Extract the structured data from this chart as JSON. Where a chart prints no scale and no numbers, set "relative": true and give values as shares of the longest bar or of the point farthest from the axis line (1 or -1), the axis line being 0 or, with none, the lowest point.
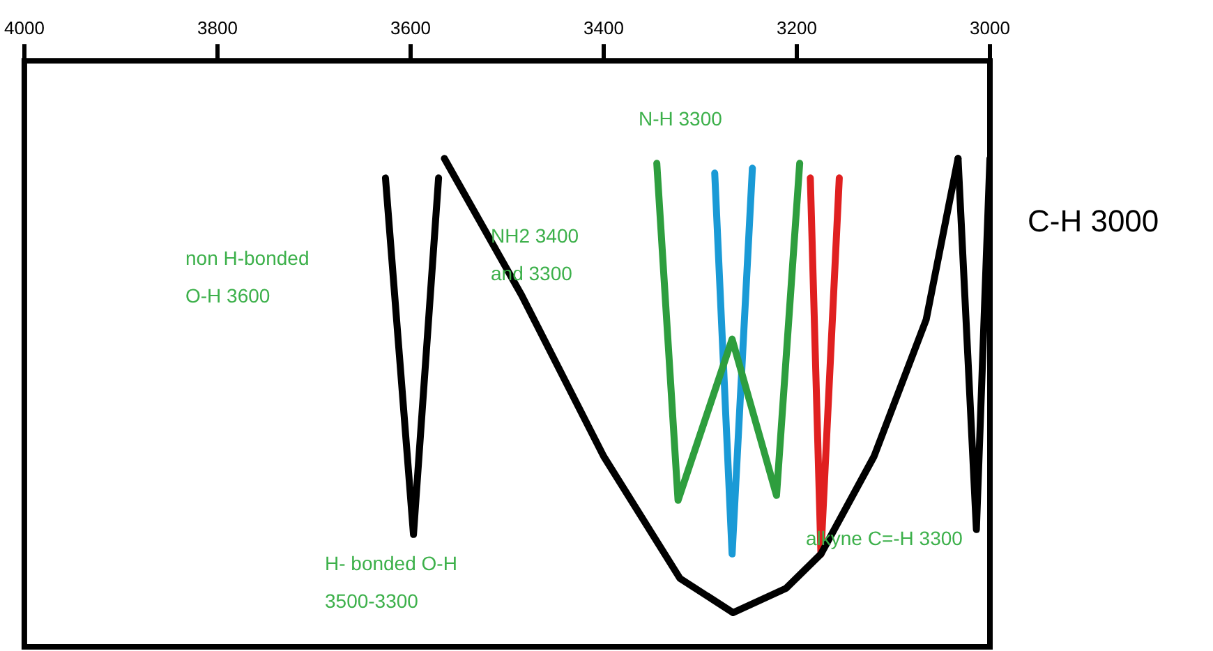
{
  "chart_data": {
    "type": "line",
    "relative": true,
    "xlim": [
      4000,
      3000
    ],
    "xticks": [
      4000,
      3800,
      3600,
      3400,
      3200,
      3000
    ],
    "grid": false,
    "legend": false,
    "marker": "none",
    "line_style": "solid",
    "series": [
      {
        "color": "#000000",
        "x": [
          3626,
          3597,
          3571
        ],
        "values": [
          0.96,
          0.23,
          0.96
        ]
      },
      {
        "color": "#000000",
        "x": [
          3565,
          3485,
          3400,
          3321,
          3266,
          3211,
          3175,
          3120,
          3066,
          3033
        ],
        "values": [
          1.0,
          0.72,
          0.39,
          0.14,
          0.07,
          0.12,
          0.19,
          0.39,
          0.67,
          1.0
        ]
      },
      {
        "color": "#000000",
        "x": [
          3033,
          3014,
          3000
        ],
        "values": [
          1.0,
          0.24,
          1.0
        ]
      },
      {
        "color": "#2e9e3e",
        "x": [
          3345,
          3323,
          3267,
          3221,
          3197
        ],
        "values": [
          0.99,
          0.3,
          0.63,
          0.31,
          0.99
        ]
      },
      {
        "color": "#1a9ad6",
        "x": [
          3285,
          3267,
          3246
        ],
        "values": [
          0.97,
          0.19,
          0.98
        ]
      },
      {
        "color": "#e02020",
        "x": [
          3186,
          3175,
          3156
        ],
        "values": [
          0.96,
          0.19,
          0.96
        ]
      }
    ],
    "annotations": [
      "non H-bonded\nO-H 3600",
      "NH2 3400\nand 3300",
      "N-H 3300",
      "H- bonded O-H\n3500-3300",
      "alkyne C=-H 3300",
      "C-H 3000"
    ]
  }
}
